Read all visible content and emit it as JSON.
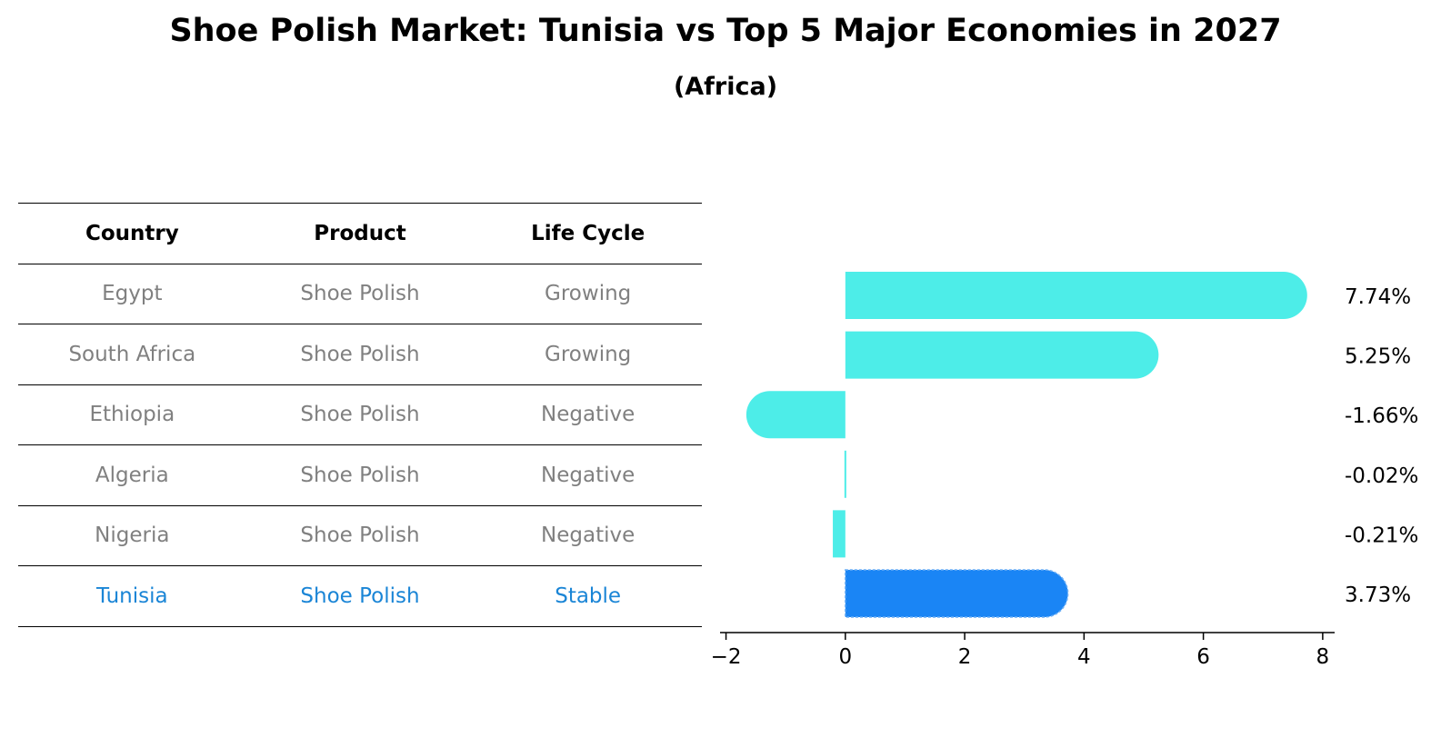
{
  "title": "Shoe Polish Market: Tunisia vs Top 5 Major Economies in 2027",
  "subtitle": "(Africa)",
  "table": {
    "headers": [
      "Country",
      "Product",
      "Life Cycle"
    ],
    "rows": [
      [
        "Egypt",
        "Shoe Polish",
        "Growing"
      ],
      [
        "South Africa",
        "Shoe Polish",
        "Growing"
      ],
      [
        "Ethiopia",
        "Shoe Polish",
        "Negative"
      ],
      [
        "Algeria",
        "Shoe Polish",
        "Negative"
      ],
      [
        "Nigeria",
        "Shoe Polish",
        "Negative"
      ],
      [
        "Tunisia",
        "Shoe Polish",
        "Stable"
      ]
    ]
  },
  "colors": {
    "bar": "#4dede8",
    "highlight": "#1a85f5",
    "highlight_text": "#1a85d6",
    "muted_text": "#808080"
  },
  "chart_data": {
    "type": "bar",
    "orientation": "horizontal",
    "categories": [
      "Egypt",
      "South Africa",
      "Ethiopia",
      "Algeria",
      "Nigeria",
      "Tunisia"
    ],
    "values": [
      7.74,
      5.25,
      -1.66,
      -0.02,
      -0.21,
      3.73
    ],
    "value_labels": [
      "7.74%",
      "5.25%",
      "-1.66%",
      "-0.02%",
      "-0.21%",
      "3.73%"
    ],
    "highlight": "Tunisia",
    "xlim": [
      -2.1,
      8.2
    ],
    "xticks": [
      -2,
      0,
      2,
      4,
      6,
      8
    ],
    "xtick_labels": [
      "−2",
      "0",
      "2",
      "4",
      "6",
      "8"
    ],
    "xlabel": "",
    "ylabel": "",
    "grid": false
  }
}
